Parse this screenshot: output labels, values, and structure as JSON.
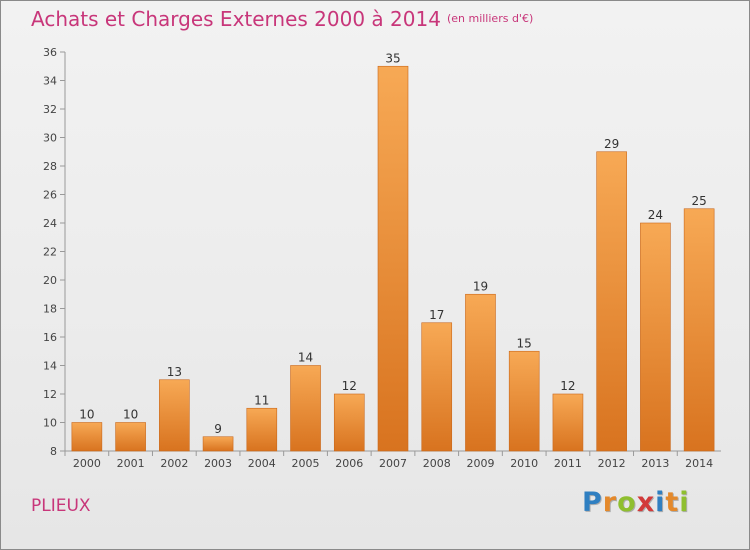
{
  "title": "Achats et Charges Externes 2000 à 2014",
  "subtitle": "(en milliers d'€)",
  "commune": "PLIEUX",
  "brand": {
    "letters": [
      {
        "ch": "P",
        "color": "#2f7fc1"
      },
      {
        "ch": "r",
        "color": "#e4892b"
      },
      {
        "ch": "o",
        "color": "#8fbf2f"
      },
      {
        "ch": "x",
        "color": "#d23a3a"
      },
      {
        "ch": "i",
        "color": "#2f7fc1"
      },
      {
        "ch": "t",
        "color": "#e4892b"
      },
      {
        "ch": "i",
        "color": "#8fbf2f"
      }
    ]
  },
  "colors": {
    "title": "#c8367a",
    "bar_light": "#f7a955",
    "bar_dark": "#d8731f"
  },
  "chart_data": {
    "type": "bar",
    "categories": [
      "2000",
      "2001",
      "2002",
      "2003",
      "2004",
      "2005",
      "2006",
      "2007",
      "2008",
      "2009",
      "2010",
      "2011",
      "2012",
      "2013",
      "2014"
    ],
    "values": [
      10,
      10,
      13,
      9,
      11,
      14,
      12,
      35,
      17,
      19,
      15,
      12,
      29,
      24,
      25
    ],
    "data_labels": [
      "10",
      "10",
      "13",
      "9",
      "11",
      "14",
      "12",
      "35",
      "17",
      "19",
      "15",
      "12",
      "29",
      "24",
      "25"
    ],
    "ylim": [
      8,
      36
    ],
    "yticks": [
      8,
      10,
      12,
      14,
      16,
      18,
      20,
      22,
      24,
      26,
      28,
      30,
      32,
      34,
      36
    ],
    "grid": false
  }
}
